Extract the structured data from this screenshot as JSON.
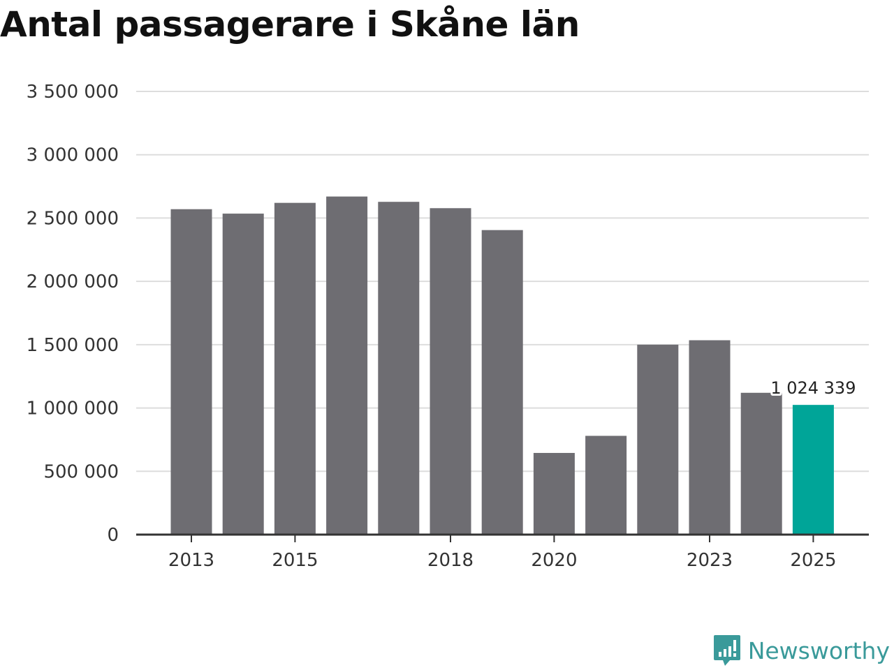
{
  "chart_data": {
    "type": "bar",
    "title": "Antal passagerare i Skåne län",
    "xlabel": "",
    "ylabel": "",
    "ylim": [
      0,
      3500000
    ],
    "yticks": [
      0,
      500000,
      1000000,
      1500000,
      2000000,
      2500000,
      3000000,
      3500000
    ],
    "ytick_labels": [
      "0",
      "500 000",
      "1 000 000",
      "1 500 000",
      "2 000 000",
      "2 500 000",
      "3 000 000",
      "3 500 000"
    ],
    "categories": [
      2013,
      2014,
      2015,
      2016,
      2017,
      2018,
      2019,
      2020,
      2021,
      2022,
      2023,
      2024,
      2025
    ],
    "values": [
      2570000,
      2535000,
      2620000,
      2670000,
      2628000,
      2578000,
      2405000,
      645000,
      780000,
      1500000,
      1535000,
      1120000,
      1024339
    ],
    "xtick_labels": [
      "2013",
      "2015",
      "2018",
      "2020",
      "2023",
      "2025"
    ],
    "xtick_years": [
      2013,
      2015,
      2018,
      2020,
      2023,
      2025
    ],
    "highlight_index": 12,
    "highlight_label": "1 024 339",
    "grid": true,
    "colors": {
      "bar": "#6e6d72",
      "highlight": "#00a598",
      "grid": "#dddddd",
      "axis": "#333333"
    }
  },
  "brand": {
    "name": "Newsworthy",
    "icon": "newsworthy-logo-icon",
    "color": "#3a9a9a"
  }
}
